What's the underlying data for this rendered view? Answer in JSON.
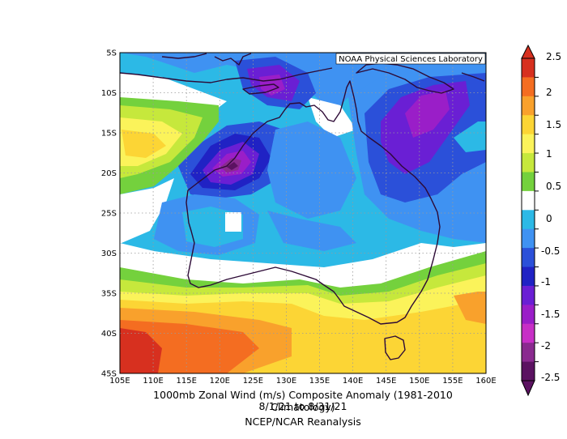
{
  "title": {
    "line1": "1000mb Zonal Wind (m/s) Composite Anomaly (1981-2010 Climatology)",
    "line2": "8/1/21  to 8/31/21",
    "line3": "NCEP/NCAR Reanalysis"
  },
  "credit": "NOAA Physical Sciences Laboratory",
  "map": {
    "lon_labels": [
      "105E",
      "110E",
      "115E",
      "120E",
      "125E",
      "130E",
      "135E",
      "140E",
      "145E",
      "150E",
      "155E",
      "160E"
    ],
    "lat_labels": [
      "5S",
      "10S",
      "15S",
      "20S",
      "25S",
      "30S",
      "35S",
      "40S",
      "45S"
    ],
    "lon_range": [
      105,
      160
    ],
    "lat_range": [
      -5,
      -45
    ]
  },
  "colorbar": {
    "labels": [
      "2.5",
      "2",
      "1.5",
      "1",
      "0.5",
      "0",
      "-0.5",
      "-1",
      "-1.5",
      "-2",
      "-2.5"
    ],
    "colors": [
      "#d7301f",
      "#f46d21",
      "#f9a12c",
      "#fcd535",
      "#fbf35a",
      "#c6e83c",
      "#74d13d",
      "#ffffff",
      "#2cb9e6",
      "#3f92f2",
      "#2b50d9",
      "#2022c4",
      "#6a1fd4",
      "#9a1ec8",
      "#c72fc6",
      "#8a2a8f",
      "#5b1261"
    ]
  },
  "chart_data": {
    "type": "heatmap",
    "title": "1000mb Zonal Wind (m/s) Composite Anomaly (1981-2010 Climatology)",
    "subtitle": "8/1/21  to 8/31/21",
    "source": "NCEP/NCAR Reanalysis",
    "units": "m/s",
    "x_range": [
      105,
      160
    ],
    "y_range": [
      -45,
      -5
    ],
    "scale_min": -2.5,
    "scale_max": 2.5,
    "features": [
      {
        "region": "NW Australia (120E-125E, 20S)",
        "value": -2.5
      },
      {
        "region": "Top End / Gulf (125E-130E, 10S)",
        "value": -2
      },
      {
        "region": "Coral Sea (150E-155E, 10S-20S)",
        "value": -2
      },
      {
        "region": "Southern Ocean (105E-110E, 42S-45S)",
        "value": 2.5
      },
      {
        "region": "South of Australia (115E-130E, 38S-43S)",
        "value": 1.5
      },
      {
        "region": "Tasmania region (145E-150E, 40S)",
        "value": 1
      },
      {
        "region": "Western Indian Ocean (105E-115E, 15S-20S)",
        "value": 1.5
      }
    ]
  }
}
